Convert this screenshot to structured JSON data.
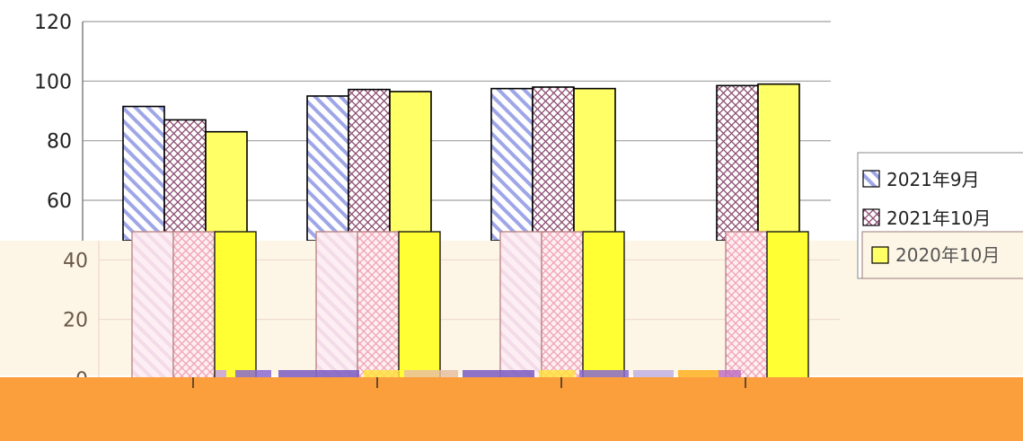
{
  "chart_data": {
    "type": "bar",
    "categories": [
      "",
      "",
      "",
      ""
    ],
    "series": [
      {
        "name": "2021年9月",
        "values": [
          91.5,
          95,
          97.5,
          null
        ]
      },
      {
        "name": "2021年10月",
        "values": [
          87,
          97.2,
          98,
          98.5
        ]
      },
      {
        "name": "2020年10月",
        "values": [
          83,
          96.5,
          97.5,
          99
        ]
      }
    ],
    "ylim": [
      0,
      120
    ],
    "yticks": [
      "0",
      "20",
      "40",
      "60",
      "80",
      "100",
      "120"
    ],
    "grid": true,
    "legend_position": "right"
  },
  "colors": {
    "series_1_stripe": "#9fa6e8",
    "series_2_hatch": "#8a4a70",
    "series_3_fill": "#ffff66",
    "overlay_cream": "#fdf6e6",
    "overlay_orange": "#fb9e3c",
    "gridline": "#a0a0a0"
  }
}
